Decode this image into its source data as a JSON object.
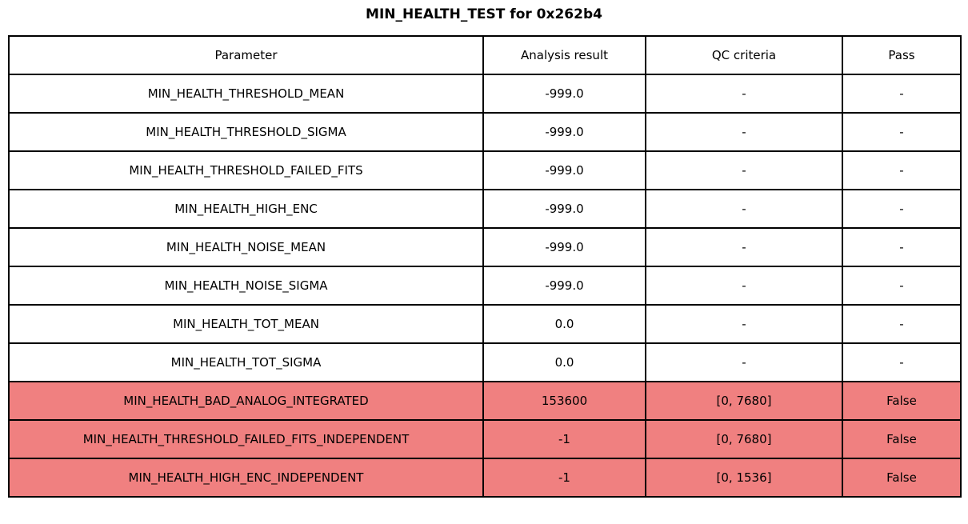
{
  "title": "MIN_HEALTH_TEST for 0x262b4",
  "colors": {
    "fail_row_bg": "#f08080",
    "normal_row_bg": "#ffffff",
    "border": "#000000",
    "text": "#000000"
  },
  "table": {
    "columns": [
      "Parameter",
      "Analysis result",
      "QC criteria",
      "Pass"
    ],
    "rows": [
      {
        "parameter": "MIN_HEALTH_THRESHOLD_MEAN",
        "result": "-999.0",
        "qc": "-",
        "pass": "-",
        "failed": false
      },
      {
        "parameter": "MIN_HEALTH_THRESHOLD_SIGMA",
        "result": "-999.0",
        "qc": "-",
        "pass": "-",
        "failed": false
      },
      {
        "parameter": "MIN_HEALTH_THRESHOLD_FAILED_FITS",
        "result": "-999.0",
        "qc": "-",
        "pass": "-",
        "failed": false
      },
      {
        "parameter": "MIN_HEALTH_HIGH_ENC",
        "result": "-999.0",
        "qc": "-",
        "pass": "-",
        "failed": false
      },
      {
        "parameter": "MIN_HEALTH_NOISE_MEAN",
        "result": "-999.0",
        "qc": "-",
        "pass": "-",
        "failed": false
      },
      {
        "parameter": "MIN_HEALTH_NOISE_SIGMA",
        "result": "-999.0",
        "qc": "-",
        "pass": "-",
        "failed": false
      },
      {
        "parameter": "MIN_HEALTH_TOT_MEAN",
        "result": "0.0",
        "qc": "-",
        "pass": "-",
        "failed": false
      },
      {
        "parameter": "MIN_HEALTH_TOT_SIGMA",
        "result": "0.0",
        "qc": "-",
        "pass": "-",
        "failed": false
      },
      {
        "parameter": "MIN_HEALTH_BAD_ANALOG_INTEGRATED",
        "result": "153600",
        "qc": "[0, 7680]",
        "pass": "False",
        "failed": true
      },
      {
        "parameter": "MIN_HEALTH_THRESHOLD_FAILED_FITS_INDEPENDENT",
        "result": "-1",
        "qc": "[0, 7680]",
        "pass": "False",
        "failed": true
      },
      {
        "parameter": "MIN_HEALTH_HIGH_ENC_INDEPENDENT",
        "result": "-1",
        "qc": "[0, 1536]",
        "pass": "False",
        "failed": true
      }
    ]
  },
  "chart_data": {
    "type": "table",
    "title": "MIN_HEALTH_TEST for 0x262b4",
    "columns": [
      "Parameter",
      "Analysis result",
      "QC criteria",
      "Pass"
    ],
    "rows": [
      [
        "MIN_HEALTH_THRESHOLD_MEAN",
        "-999.0",
        "-",
        "-"
      ],
      [
        "MIN_HEALTH_THRESHOLD_SIGMA",
        "-999.0",
        "-",
        "-"
      ],
      [
        "MIN_HEALTH_THRESHOLD_FAILED_FITS",
        "-999.0",
        "-",
        "-"
      ],
      [
        "MIN_HEALTH_HIGH_ENC",
        "-999.0",
        "-",
        "-"
      ],
      [
        "MIN_HEALTH_NOISE_MEAN",
        "-999.0",
        "-",
        "-"
      ],
      [
        "MIN_HEALTH_NOISE_SIGMA",
        "-999.0",
        "-",
        "-"
      ],
      [
        "MIN_HEALTH_TOT_MEAN",
        "0.0",
        "-",
        "-"
      ],
      [
        "MIN_HEALTH_TOT_SIGMA",
        "0.0",
        "-",
        "-"
      ],
      [
        "MIN_HEALTH_BAD_ANALOG_INTEGRATED",
        "153600",
        "[0, 7680]",
        "False"
      ],
      [
        "MIN_HEALTH_THRESHOLD_FAILED_FITS_INDEPENDENT",
        "-1",
        "[0, 7680]",
        "False"
      ],
      [
        "MIN_HEALTH_HIGH_ENC_INDEPENDENT",
        "-1",
        "[0, 1536]",
        "False"
      ]
    ],
    "failed_row_indices": [
      8,
      9,
      10
    ],
    "highlight_color": "#f08080",
    "legend_position": "none",
    "grid": true
  }
}
